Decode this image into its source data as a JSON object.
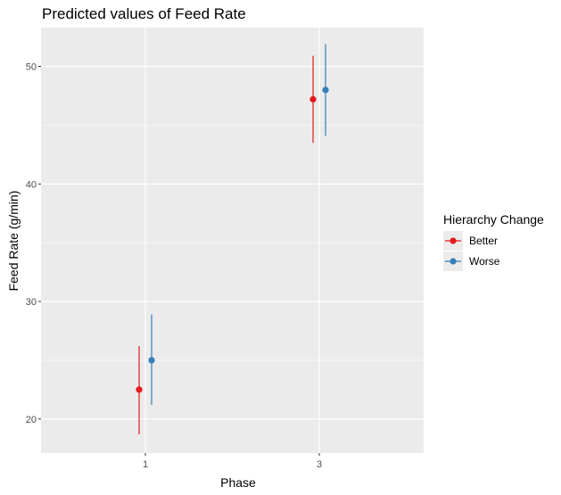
{
  "chart_data": {
    "type": "scatter",
    "title": "Predicted values of Feed Rate",
    "xlabel": "Phase",
    "ylabel": "Feed Rate (g/min)",
    "categories": [
      "1",
      "3"
    ],
    "ylim": [
      17.1,
      53.3
    ],
    "yticks": [
      20,
      30,
      40,
      50
    ],
    "grid": true,
    "legend": {
      "title": "Hierarchy Change",
      "placement": "right"
    },
    "series": [
      {
        "name": "Better",
        "color": "#e41a1c",
        "points": [
          {
            "x": "1",
            "y": 22.5,
            "ymin": 18.7,
            "ymax": 26.2
          },
          {
            "x": "3",
            "y": 47.2,
            "ymin": 43.5,
            "ymax": 50.9
          }
        ]
      },
      {
        "name": "Worse",
        "color": "#377eb8",
        "points": [
          {
            "x": "1",
            "y": 25.0,
            "ymin": 21.2,
            "ymax": 28.9
          },
          {
            "x": "3",
            "y": 48.0,
            "ymin": 44.1,
            "ymax": 51.9
          }
        ]
      }
    ]
  }
}
